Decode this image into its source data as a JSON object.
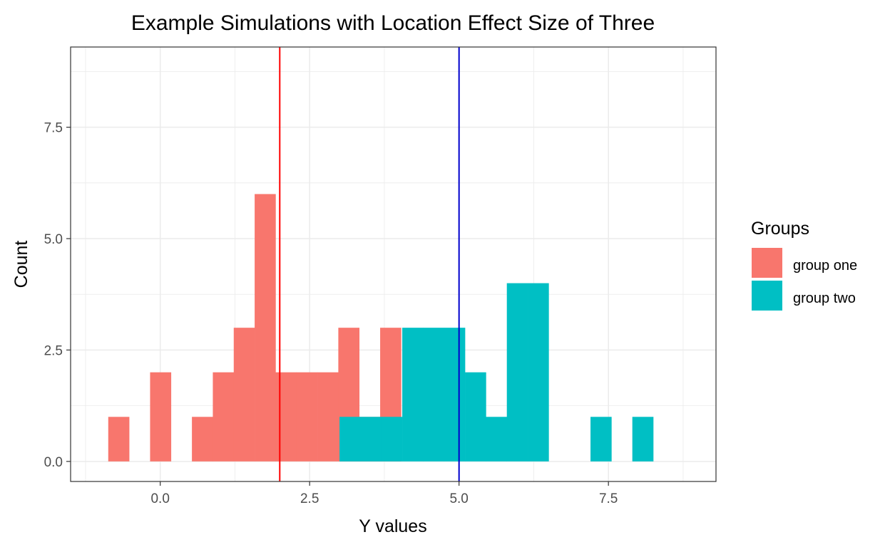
{
  "chart_data": {
    "type": "histogram",
    "title": "Example Simulations with Location Effect Size of Three",
    "xlabel": "Y values",
    "ylabel": "Count",
    "xlim": [
      -1.5,
      9.3
    ],
    "ylim": [
      -0.45,
      9.3
    ],
    "x_ticks": [
      0.0,
      2.5,
      5.0,
      7.5
    ],
    "x_tick_labels": [
      "0.0",
      "2.5",
      "5.0",
      "7.5"
    ],
    "y_ticks": [
      0.0,
      2.5,
      5.0,
      7.5
    ],
    "y_tick_labels": [
      "0.0",
      "2.5",
      "5.0",
      "7.5"
    ],
    "grid": true,
    "stacking": "identity",
    "legend": {
      "title": "Groups",
      "placement": "right"
    },
    "series": [
      {
        "name": "group one",
        "color": "#F8766D",
        "bins": [
          {
            "x0": -0.87,
            "x1": -0.52,
            "count": 1
          },
          {
            "x0": -0.17,
            "x1": 0.18,
            "count": 2
          },
          {
            "x0": 0.53,
            "x1": 0.88,
            "count": 1
          },
          {
            "x0": 0.88,
            "x1": 1.23,
            "count": 2
          },
          {
            "x0": 1.23,
            "x1": 1.58,
            "count": 3
          },
          {
            "x0": 1.58,
            "x1": 1.93,
            "count": 6
          },
          {
            "x0": 1.93,
            "x1": 2.28,
            "count": 2
          },
          {
            "x0": 2.28,
            "x1": 2.63,
            "count": 2
          },
          {
            "x0": 2.63,
            "x1": 2.98,
            "count": 2
          },
          {
            "x0": 2.98,
            "x1": 3.33,
            "count": 3
          },
          {
            "x0": 3.33,
            "x1": 3.68,
            "count": 1
          },
          {
            "x0": 3.68,
            "x1": 4.03,
            "count": 3
          }
        ]
      },
      {
        "name": "group two",
        "color": "#00BFC4",
        "bins": [
          {
            "x0": 3.0,
            "x1": 3.35,
            "count": 1
          },
          {
            "x0": 3.35,
            "x1": 3.7,
            "count": 1
          },
          {
            "x0": 3.7,
            "x1": 4.05,
            "count": 1
          },
          {
            "x0": 4.05,
            "x1": 4.4,
            "count": 3
          },
          {
            "x0": 4.4,
            "x1": 4.75,
            "count": 3
          },
          {
            "x0": 4.75,
            "x1": 5.1,
            "count": 3
          },
          {
            "x0": 5.1,
            "x1": 5.45,
            "count": 2
          },
          {
            "x0": 5.45,
            "x1": 5.8,
            "count": 1
          },
          {
            "x0": 5.8,
            "x1": 6.15,
            "count": 4
          },
          {
            "x0": 6.15,
            "x1": 6.5,
            "count": 4
          },
          {
            "x0": 7.2,
            "x1": 7.55,
            "count": 1
          },
          {
            "x0": 7.9,
            "x1": 8.25,
            "count": 1
          }
        ]
      }
    ],
    "vlines": [
      {
        "x": 2.0,
        "color": "#FF0000"
      },
      {
        "x": 5.0,
        "color": "#0000CD"
      }
    ]
  }
}
